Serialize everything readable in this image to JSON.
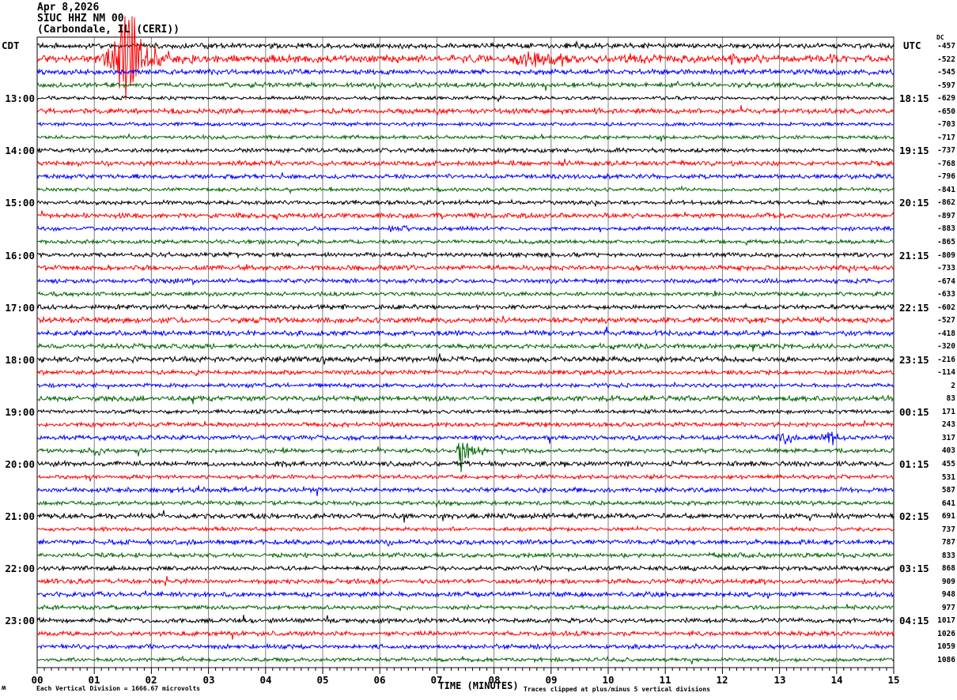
{
  "header": {
    "date": "Apr 8,2026",
    "station": "SIUC HHZ NM 00",
    "location": "(Carbondale, IL (CERI))"
  },
  "left_axis": {
    "label": "CDT",
    "ticks": [
      "13:00",
      "14:00",
      "15:00",
      "16:00",
      "17:00",
      "18:00",
      "19:00",
      "20:00",
      "21:00",
      "22:00",
      "23:00"
    ]
  },
  "right_axis": {
    "label": "UTC",
    "ticks": [
      "18:15",
      "19:15",
      "20:15",
      "21:15",
      "22:15",
      "23:15",
      "00:15",
      "01:15",
      "02:15",
      "03:15",
      "04:15"
    ]
  },
  "dc_column": {
    "header": "DC",
    "values": [
      -457,
      -522,
      -545,
      -597,
      -629,
      -650,
      -703,
      -717,
      -737,
      -768,
      -796,
      -841,
      -862,
      -897,
      -883,
      -865,
      -809,
      -733,
      -674,
      -633,
      -602,
      -527,
      -418,
      -320,
      -216,
      -114,
      2,
      83,
      171,
      243,
      317,
      403,
      455,
      531,
      587,
      641,
      691,
      737,
      787,
      833,
      868,
      909,
      948,
      977,
      1017,
      1026,
      1059,
      1086
    ]
  },
  "x_axis": {
    "label": "TIME (MINUTES)",
    "ticks": [
      "00",
      "01",
      "02",
      "03",
      "04",
      "05",
      "06",
      "07",
      "08",
      "09",
      "10",
      "11",
      "12",
      "13",
      "14",
      "15"
    ]
  },
  "footer": {
    "scale_note": "Each Vertical Division = 1666.67 microvolts",
    "clip_note": "Traces clipped at plus/minus 5 vertical divisions",
    "logo_mark": "ʍ"
  },
  "chart_data": {
    "type": "line",
    "subtype": "helicorder",
    "title": "SIUC HHZ NM 00 (Carbondale, IL (CERI)) Apr 8,2026",
    "xlabel": "TIME (MINUTES)",
    "x_range_minutes": [
      0,
      15
    ],
    "num_rows": 48,
    "minutes_per_row": 15,
    "row_start_cdt_first": "12:00",
    "row_interval_minutes": 15,
    "trace_color_cycle": [
      "#000000",
      "#ff0000",
      "#0000ff",
      "#006600"
    ],
    "grid_color": "#808080",
    "clip_divisions": 5,
    "microvolts_per_division": 1666.67,
    "base_noise_divisions": 0.09,
    "row_noise_mult": {
      "0": 1.3,
      "1": 1.5,
      "2": 1.15,
      "10": 1.1,
      "21": 1.15,
      "22": 1.2,
      "32": 1.25,
      "45": 0.9
    },
    "events": [
      {
        "row": 1,
        "label": "main-earthquake",
        "bursts": [
          [
            1.3,
            0.15,
            0.35
          ],
          [
            1.55,
            0.1,
            2.85
          ],
          [
            1.72,
            0.28,
            0.85
          ],
          [
            2.2,
            0.5,
            0.22
          ]
        ]
      },
      {
        "row": 1,
        "label": "aftershock-cluster",
        "bursts": [
          [
            8.6,
            0.1,
            0.32
          ],
          [
            8.85,
            0.3,
            0.4
          ],
          [
            10.5,
            0.15,
            0.3
          ],
          [
            12.2,
            0.1,
            0.28
          ],
          [
            13.95,
            0.1,
            0.16
          ]
        ]
      },
      {
        "row": 11,
        "label": "minor-burst",
        "bursts": [
          [
            11.3,
            0.08,
            0.18
          ]
        ]
      },
      {
        "row": 14,
        "label": "minor-burst",
        "bursts": [
          [
            6.3,
            0.2,
            0.14
          ]
        ]
      },
      {
        "row": 17,
        "label": "minor-burst",
        "bursts": [
          [
            3.7,
            0.06,
            0.2
          ]
        ]
      },
      {
        "row": 30,
        "label": "local-event",
        "bursts": [
          [
            13.1,
            0.12,
            0.35
          ],
          [
            13.9,
            0.08,
            0.42
          ]
        ]
      },
      {
        "row": 31,
        "label": "local-event",
        "bursts": [
          [
            1.05,
            0.12,
            0.25
          ],
          [
            7.45,
            0.06,
            1.05
          ],
          [
            7.6,
            0.18,
            0.3
          ]
        ]
      },
      {
        "row": 41,
        "label": "minor-spike",
        "bursts": [
          [
            2.25,
            0.05,
            0.26
          ]
        ]
      }
    ]
  }
}
